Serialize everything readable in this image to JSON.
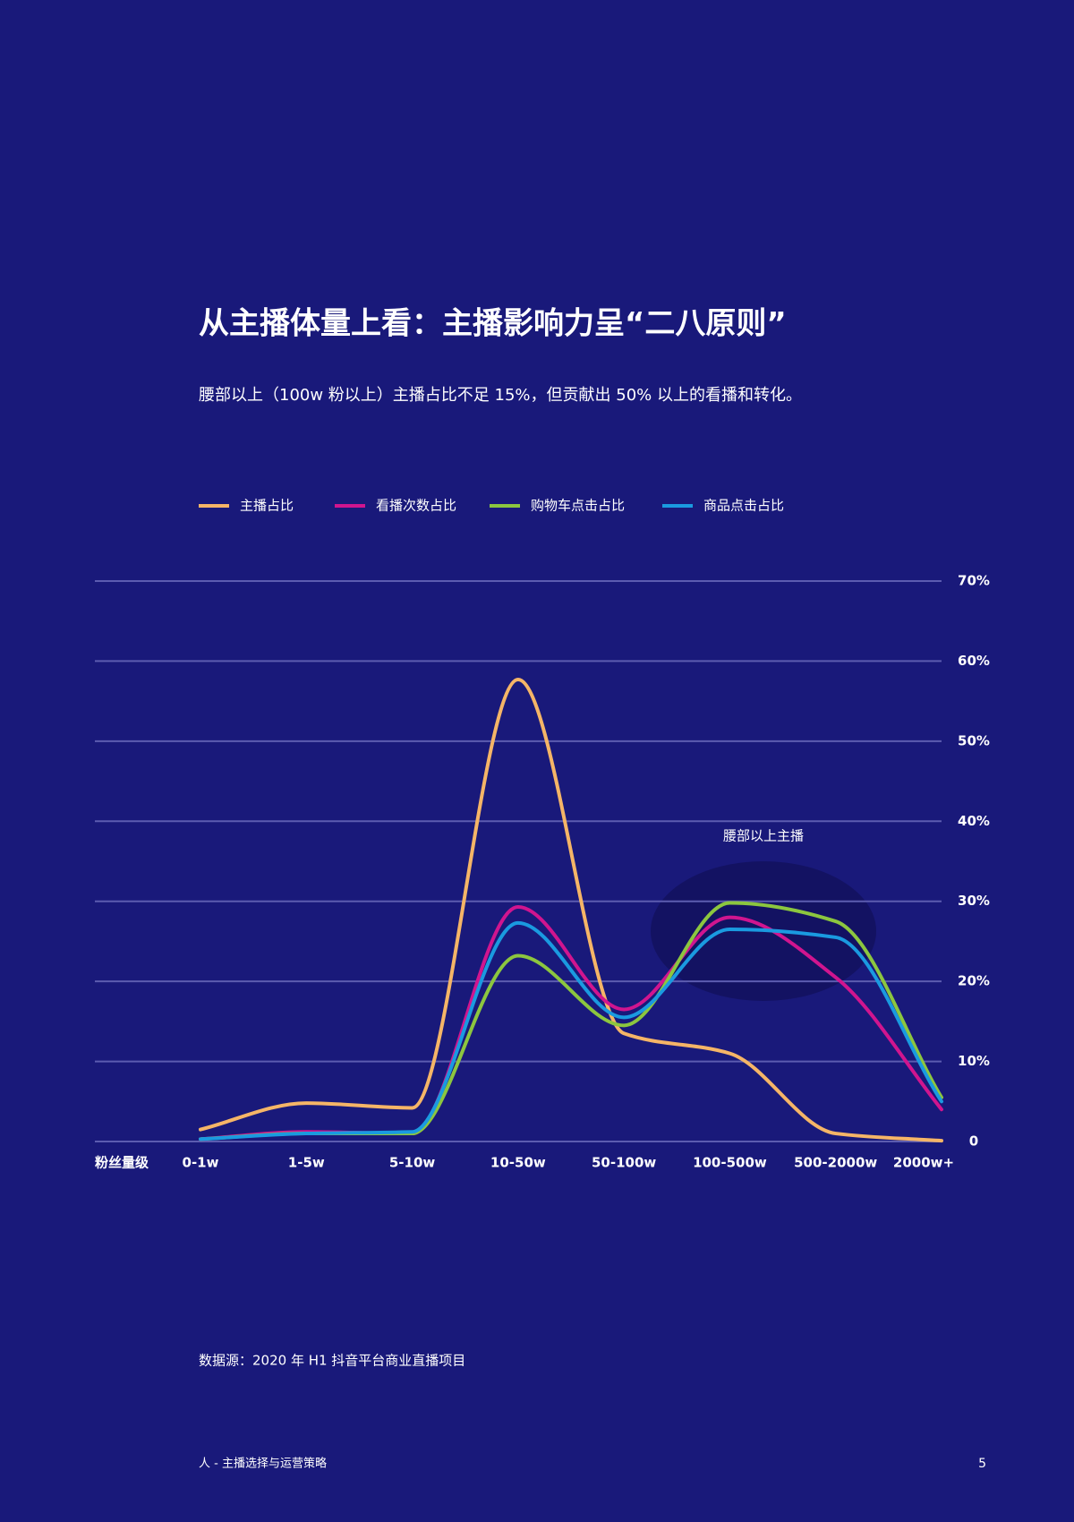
{
  "header": {
    "title": "从主播体量上看：主播影响力呈“二八原则”",
    "subtitle": "腰部以上（100w 粉以上）主播占比不足 15%，但贡献出 50% 以上的看播和转化。"
  },
  "chart_data": {
    "type": "line",
    "smooth": true,
    "x_label": "粉丝量级",
    "categories": [
      "0-1w",
      "1-5w",
      "5-10w",
      "10-50w",
      "50-100w",
      "100-500w",
      "500-2000w",
      "2000w+"
    ],
    "series": [
      {
        "name": "主播占比",
        "color": "#f5b567",
        "values": [
          1.5,
          4.8,
          4.2,
          57.7,
          13.5,
          11.0,
          1.0,
          0.1
        ]
      },
      {
        "name": "看播次数占比",
        "color": "#d0158f",
        "values": [
          0.3,
          1.2,
          1.0,
          29.3,
          16.5,
          28.0,
          20.5,
          4.0
        ]
      },
      {
        "name": "购物车点击占比",
        "color": "#8cc63f",
        "values": [
          0.3,
          1.0,
          1.0,
          23.2,
          14.5,
          29.8,
          27.5,
          5.5
        ]
      },
      {
        "name": "商品点击占比",
        "color": "#1a9ae0",
        "values": [
          0.3,
          1.0,
          1.2,
          27.3,
          15.5,
          26.5,
          25.5,
          5.0
        ]
      }
    ],
    "ylim": [
      0,
      70
    ],
    "yticks": [
      0,
      {
        "value": 10,
        "label": "10%"
      },
      {
        "value": 20,
        "label": "20%"
      },
      {
        "value": 30,
        "label": "30%"
      },
      {
        "value": 40,
        "label": "40%"
      },
      {
        "value": 50,
        "label": "50%"
      },
      {
        "value": 60,
        "label": "60%"
      },
      {
        "value": 70,
        "label": "70%"
      }
    ],
    "grid": true,
    "annotation": "腰部以上主播"
  },
  "footer": {
    "source": "数据源：2020 年 H1 抖音平台商业直播项目",
    "section": "人 - 主播选择与运营策略",
    "page": "5"
  }
}
